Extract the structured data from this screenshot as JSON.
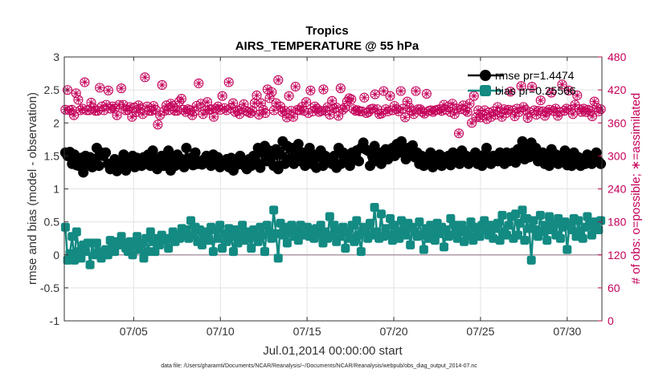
{
  "chart_data": {
    "type": "line",
    "title": "Tropics",
    "subtitle": "AIRS_TEMPERATURE @ 55 hPa",
    "xlabel": "Jul.01,2014 00:00:00 start",
    "ylabel_left": "rmse and bias (model - observation)",
    "ylabel_right": "# of obs: o=possible; ∗=assimilated",
    "footnote": "data file: /Users/gharamti/Documents/NCAR/Reanalysis/~/Documents/NCAR/Reanalysis/webpub/obs_diag_output_2014-07.nc",
    "xlim": [
      1,
      32
    ],
    "ylim_left": [
      -1,
      3
    ],
    "ylim_right": [
      0,
      480
    ],
    "x_ticks": [
      5,
      10,
      15,
      20,
      25,
      30
    ],
    "x_tick_labels": [
      "07/05",
      "07/10",
      "07/15",
      "07/20",
      "07/25",
      "07/30"
    ],
    "y_left_ticks": [
      -1,
      -0.5,
      0,
      0.5,
      1,
      1.5,
      2,
      2.5,
      3
    ],
    "y_left_tick_labels": [
      "-1",
      "-0.5",
      "0",
      "0.5",
      "1",
      "1.5",
      "2",
      "2.5",
      "3"
    ],
    "y_right_ticks": [
      0,
      60,
      120,
      180,
      240,
      300,
      360,
      420,
      480
    ],
    "y_right_tick_labels": [
      "0",
      "60",
      "120",
      "180",
      "240",
      "300",
      "360",
      "420",
      "480"
    ],
    "grid": true,
    "legend_position": "top-right",
    "series": [
      {
        "name": "rmse",
        "legend_label": "rmse pr=1.4474",
        "axis": "left",
        "color": "#000000",
        "marker": "circle",
        "values": [
          1.55,
          1.5,
          1.56,
          1.38,
          1.52,
          1.36,
          1.35,
          1.47,
          1.25,
          1.5,
          1.38,
          1.48,
          1.33,
          1.45,
          1.62,
          1.35,
          1.55,
          1.5,
          1.55,
          1.38,
          1.3,
          1.33,
          1.45,
          1.27,
          1.4,
          1.35,
          1.52,
          1.28,
          1.42,
          1.37,
          1.5,
          1.33,
          1.47,
          1.4,
          1.35,
          1.48,
          1.38,
          1.52,
          1.35,
          1.58,
          1.45,
          1.3,
          1.38,
          1.5,
          1.35,
          1.42,
          1.58,
          1.28,
          1.48,
          1.35,
          1.52,
          1.38,
          1.45,
          1.33,
          1.62,
          1.4,
          1.47,
          1.36,
          1.55,
          1.38,
          1.42,
          1.37,
          1.45,
          1.5,
          1.4,
          1.35,
          1.52,
          1.38,
          1.48,
          1.33,
          1.42,
          1.38,
          1.45,
          1.33,
          1.47,
          1.28,
          1.42,
          1.37,
          1.5,
          1.38,
          1.35,
          1.3,
          1.45,
          1.35,
          1.5,
          1.4,
          1.62,
          1.32,
          1.55,
          1.65,
          1.42,
          1.58,
          1.48,
          1.35,
          1.6,
          1.3,
          1.52,
          1.72,
          1.38,
          1.65,
          1.45,
          1.62,
          1.38,
          1.5,
          1.68,
          1.42,
          1.55,
          1.35,
          1.45,
          1.62,
          1.38,
          1.52,
          1.32,
          1.48,
          1.58,
          1.35,
          1.5,
          1.42,
          1.45,
          1.38,
          1.5,
          1.32,
          1.62,
          1.38,
          1.55,
          1.45,
          1.5,
          1.35,
          1.55,
          1.45,
          1.58,
          1.42,
          1.62,
          1.7,
          1.6,
          1.58,
          1.35,
          1.5,
          1.65,
          1.42,
          1.55,
          1.38,
          1.5,
          1.6,
          1.45,
          1.52,
          1.62,
          1.5,
          1.68,
          1.55,
          1.72,
          1.6,
          1.45,
          1.62,
          1.52,
          1.66,
          1.48,
          1.55,
          1.38,
          1.5,
          1.35,
          1.45,
          1.4,
          1.55,
          1.33,
          1.45,
          1.4,
          1.52,
          1.35,
          1.48,
          1.42,
          1.5,
          1.36,
          1.55,
          1.45,
          1.52,
          1.38,
          1.58,
          1.45,
          1.5,
          1.38,
          1.48,
          1.42,
          1.55,
          1.38,
          1.47,
          1.35,
          1.52,
          1.62,
          1.4,
          1.38,
          1.5,
          1.45,
          1.42,
          1.55,
          1.47,
          1.38,
          1.55,
          1.42,
          1.48,
          1.55,
          1.4,
          1.6,
          1.5,
          1.72,
          1.45,
          1.62,
          1.48,
          1.7,
          1.55,
          1.62,
          1.42,
          1.48,
          1.55,
          1.38,
          1.5,
          1.35,
          1.6,
          1.45,
          1.52,
          1.38,
          1.48,
          1.42,
          1.58,
          1.36,
          1.45,
          1.35,
          1.55,
          1.4,
          1.48,
          1.35,
          1.42,
          1.38,
          1.52,
          1.45,
          1.38,
          1.5,
          1.55,
          1.42,
          1.38
        ]
      },
      {
        "name": "bias",
        "legend_label": "bias pr=0.25566",
        "axis": "left",
        "color": "#138a82",
        "marker": "square",
        "values": [
          0.42,
          -0.08,
          0.02,
          0.28,
          -0.08,
          0.35,
          0.05,
          -0.05,
          0.15,
          0.05,
          0.18,
          -0.15,
          0.18,
          0.0,
          0.18,
          0.05,
          -0.05,
          0.02,
          0.08,
          0.0,
          0.22,
          0.15,
          0.05,
          0.2,
          0.15,
          0.28,
          0.18,
          0.1,
          0.05,
          0.2,
          0.0,
          0.15,
          0.28,
          0.08,
          0.18,
          -0.05,
          0.25,
          0.05,
          0.35,
          0.2,
          0.05,
          0.25,
          0.15,
          0.3,
          0.22,
          0.25,
          0.1,
          0.25,
          0.35,
          0.2,
          0.3,
          0.25,
          0.4,
          0.3,
          0.38,
          0.25,
          0.52,
          0.3,
          0.42,
          0.2,
          0.38,
          0.15,
          0.28,
          0.35,
          0.22,
          0.42,
          0.05,
          0.38,
          0.25,
          0.45,
          0.1,
          0.32,
          0.2,
          0.4,
          0.28,
          0.05,
          0.38,
          0.18,
          0.3,
          0.45,
          0.22,
          0.35,
          0.25,
          0.1,
          0.38,
          0.28,
          0.2,
          0.42,
          0.3,
          0.05,
          0.45,
          0.35,
          0.25,
          0.68,
          0.32,
          -0.05,
          0.48,
          0.3,
          0.42,
          0.18,
          0.35,
          0.45,
          0.28,
          0.38,
          0.22,
          0.45,
          0.35,
          0.3,
          0.42,
          0.28,
          0.38,
          0.25,
          0.4,
          0.3,
          0.45,
          0.18,
          0.35,
          0.25,
          0.58,
          0.3,
          0.45,
          0.2,
          0.38,
          0.28,
          0.42,
          0.1,
          0.35,
          0.25,
          0.45,
          0.2,
          0.52,
          0.3,
          0.05,
          0.42,
          0.35,
          0.25,
          0.48,
          0.3,
          0.72,
          0.35,
          0.25,
          0.62,
          0.28,
          0.4,
          0.3,
          0.55,
          0.22,
          0.45,
          0.35,
          0.25,
          0.52,
          0.38,
          0.3,
          0.48,
          0.15,
          0.42,
          0.35,
          0.28,
          0.5,
          0.3,
          0.08,
          0.4,
          0.25,
          0.45,
          0.35,
          0.22,
          0.48,
          0.32,
          0.42,
          0.12,
          0.38,
          0.28,
          0.55,
          0.3,
          0.45,
          0.25,
          0.35,
          0.45,
          0.2,
          0.38,
          0.3,
          0.5,
          0.22,
          0.42,
          0.35,
          0.28,
          0.45,
          0.52,
          0.38,
          0.3,
          0.45,
          0.25,
          0.4,
          0.48,
          0.22,
          0.6,
          0.35,
          0.3,
          0.45,
          0.58,
          0.25,
          0.62,
          0.3,
          0.48,
          0.68,
          0.22,
          0.55,
          0.4,
          -0.08,
          0.52,
          0.38,
          0.28,
          0.6,
          0.35,
          0.45,
          0.22,
          0.58,
          0.38,
          0.48,
          0.3,
          0.55,
          0.25,
          0.42,
          0.5,
          0.08,
          0.45,
          0.38,
          0.55,
          0.28,
          0.52,
          0.35,
          0.25,
          0.42,
          0.58,
          0.45,
          0.3,
          0.5,
          0.42,
          0.38,
          0.52
        ]
      },
      {
        "name": "possible",
        "axis": "right",
        "color": "#c4005a",
        "marker": "circle-open",
        "values": [
          384,
          420,
          383,
          384,
          374,
          414,
          402,
          383,
          386,
          434,
          383,
          383,
          397,
          387,
          382,
          382,
          424,
          390,
          383,
          393,
          419,
          386,
          390,
          386,
          374,
          393,
          423,
          393,
          383,
          384,
          389,
          371,
          388,
          380,
          392,
          386,
          376,
          443,
          390,
          382,
          382,
          391,
          384,
          357,
          374,
          429,
          382,
          392,
          383,
          395,
          391,
          382,
          382,
          399,
          404,
          384,
          380,
          385,
          383,
          374,
          381,
          391,
          432,
          395,
          376,
          383,
          398,
          384,
          385,
          371,
          386,
          390,
          384,
          409,
          387,
          383,
          434,
          387,
          396,
          380,
          382,
          376,
          386,
          394,
          382,
          380,
          378,
          382,
          396,
          410,
          375,
          396,
          384,
          378,
          421,
          405,
          416,
          383,
          396,
          438,
          390,
          380,
          382,
          370,
          409,
          382,
          371,
          426,
          384,
          383,
          389,
          382,
          398,
          378,
          419,
          381,
          390,
          386,
          380,
          382,
          421,
          382,
          389,
          375,
          400,
          386,
          388,
          373,
          423,
          384,
          388,
          399,
          405,
          403,
          385,
          382,
          383,
          381,
          381,
          406,
          378,
          380,
          385,
          386,
          412,
          385,
          376,
          377,
          418,
          385,
          381,
          409,
          383,
          391,
          385,
          381,
          418,
          386,
          370,
          399,
          388,
          382,
          376,
          418,
          385,
          385,
          380,
          377,
          413,
          382,
          383,
          380,
          383,
          384,
          385,
          382,
          393,
          384,
          389,
          380,
          395,
          376,
          386,
          341,
          385,
          392,
          383,
          380,
          395,
          360,
          409,
          370,
          383,
          370,
          374,
          383,
          367,
          379,
          371,
          381,
          375,
          389,
          379,
          371,
          385,
          378,
          384,
          417,
          383,
          372,
          386,
          380,
          427,
          389,
          384,
          369,
          379,
          426,
          383,
          375,
          382,
          401,
          381,
          373,
          380,
          384,
          415,
          382,
          386,
          373,
          380,
          430,
          382,
          386,
          419,
          384,
          376,
          393,
          410,
          385,
          380,
          386,
          380,
          384,
          382,
          372,
          399,
          388,
          381,
          385
        ]
      },
      {
        "name": "assimilated",
        "axis": "right",
        "color": "#c4005a",
        "marker": "asterisk",
        "values": [
          384,
          420,
          383,
          384,
          374,
          414,
          402,
          383,
          386,
          434,
          383,
          383,
          397,
          387,
          382,
          382,
          424,
          390,
          383,
          393,
          419,
          386,
          390,
          386,
          374,
          393,
          423,
          393,
          383,
          384,
          389,
          371,
          388,
          380,
          392,
          386,
          376,
          443,
          390,
          382,
          382,
          391,
          384,
          357,
          374,
          429,
          382,
          392,
          383,
          395,
          391,
          382,
          382,
          399,
          404,
          384,
          380,
          385,
          383,
          374,
          381,
          391,
          432,
          395,
          376,
          383,
          398,
          384,
          385,
          371,
          386,
          390,
          384,
          409,
          387,
          383,
          434,
          387,
          396,
          380,
          382,
          376,
          386,
          394,
          382,
          380,
          378,
          382,
          396,
          410,
          375,
          396,
          384,
          378,
          421,
          405,
          416,
          383,
          396,
          438,
          390,
          380,
          382,
          370,
          409,
          382,
          371,
          426,
          384,
          383,
          389,
          382,
          398,
          378,
          419,
          381,
          390,
          386,
          380,
          382,
          421,
          382,
          389,
          375,
          400,
          386,
          388,
          373,
          423,
          384,
          388,
          399,
          405,
          403,
          385,
          382,
          383,
          381,
          381,
          406,
          378,
          380,
          385,
          386,
          412,
          385,
          376,
          377,
          418,
          385,
          381,
          409,
          383,
          391,
          385,
          381,
          418,
          386,
          370,
          399,
          388,
          382,
          376,
          418,
          385,
          385,
          380,
          377,
          413,
          382,
          383,
          380,
          383,
          384,
          385,
          382,
          393,
          384,
          389,
          380,
          395,
          376,
          386,
          341,
          385,
          392,
          383,
          380,
          395,
          360,
          409,
          370,
          383,
          370,
          374,
          383,
          367,
          379,
          371,
          381,
          375,
          389,
          379,
          371,
          385,
          378,
          384,
          417,
          383,
          372,
          386,
          380,
          427,
          389,
          384,
          369,
          379,
          426,
          383,
          375,
          382,
          401,
          381,
          373,
          380,
          384,
          415,
          382,
          386,
          373,
          380,
          430,
          382,
          386,
          419,
          384,
          376,
          393,
          410,
          385,
          380,
          386,
          380,
          384,
          382,
          372,
          399,
          388,
          381,
          385
        ]
      }
    ]
  }
}
